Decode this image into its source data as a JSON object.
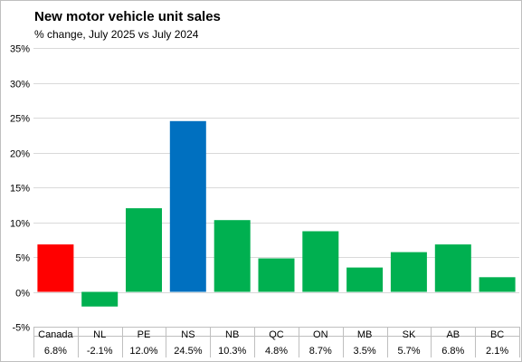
{
  "chart_data": {
    "type": "bar",
    "title": "New motor vehicle unit sales",
    "subtitle": "% change, July 2025 vs July 2024",
    "categories": [
      "Canada",
      "NL",
      "PE",
      "NS",
      "NB",
      "QC",
      "ON",
      "MB",
      "SK",
      "AB",
      "BC"
    ],
    "values": [
      6.8,
      -2.1,
      12.0,
      24.5,
      10.3,
      4.8,
      8.7,
      3.5,
      5.7,
      6.8,
      2.1
    ],
    "value_labels": [
      "6.8%",
      "-2.1%",
      "12.0%",
      "24.5%",
      "10.3%",
      "4.8%",
      "8.7%",
      "3.5%",
      "5.7%",
      "6.8%",
      "2.1%"
    ],
    "bar_colors": [
      "#ff0000",
      "#00b050",
      "#00b050",
      "#0070c0",
      "#00b050",
      "#00b050",
      "#00b050",
      "#00b050",
      "#00b050",
      "#00b050",
      "#00b050"
    ],
    "xlabel": "",
    "ylabel": "",
    "ylim": [
      -5,
      35
    ],
    "yticks": [
      -5,
      0,
      5,
      10,
      15,
      20,
      25,
      30,
      35
    ],
    "ytick_labels": [
      "-5%",
      "0%",
      "5%",
      "10%",
      "15%",
      "20%",
      "25%",
      "30%",
      "35%"
    ],
    "grid": true,
    "legend": "none"
  }
}
